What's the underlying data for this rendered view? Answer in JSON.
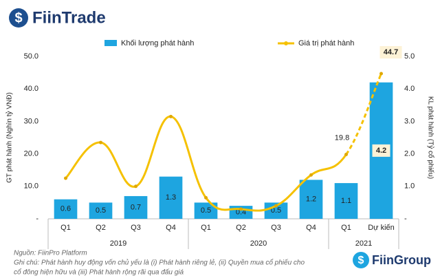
{
  "header": {
    "brand": "FiinTrade"
  },
  "chart_data": {
    "type": "bar-line",
    "categories": [
      "Q1",
      "Q2",
      "Q3",
      "Q4",
      "Q1",
      "Q2",
      "Q3",
      "Q4",
      "Q1",
      "Dự kiến"
    ],
    "x_groups": [
      "2019",
      "2020",
      "2021"
    ],
    "group_sizes": [
      4,
      4,
      2
    ],
    "y_label": "GT phát hành (Nghìn tỷ VNĐ)",
    "y2_label": "KL phát hành (Tỷ cổ phiếu)",
    "ylim": [
      0,
      50
    ],
    "yticks": [
      {
        "value": 0,
        "label": "-"
      },
      {
        "value": 10,
        "label": "10.0"
      },
      {
        "value": 20,
        "label": "20.0"
      },
      {
        "value": 30,
        "label": "30.0"
      },
      {
        "value": 40,
        "label": "40.0"
      },
      {
        "value": 50,
        "label": "50.0"
      }
    ],
    "y2lim": [
      0,
      5
    ],
    "y2ticks": [
      {
        "value": 0,
        "label": "-"
      },
      {
        "value": 1,
        "label": "1.0"
      },
      {
        "value": 2,
        "label": "2.0"
      },
      {
        "value": 3,
        "label": "3.0"
      },
      {
        "value": 4,
        "label": "4.0"
      },
      {
        "value": 5,
        "label": "5.0"
      }
    ],
    "series": [
      {
        "name": "Khối lượng phát hành",
        "type": "bar",
        "axis": "y2",
        "color": "#1ea5e0",
        "values": [
          0.6,
          0.5,
          0.7,
          1.3,
          0.5,
          0.4,
          0.5,
          1.2,
          1.1,
          4.2
        ]
      },
      {
        "name": "Giá trị phát hành",
        "type": "line",
        "axis": "y",
        "color": "#f5c100",
        "values": [
          12.5,
          23.5,
          10,
          31.5,
          6.5,
          3,
          4,
          13.5,
          19.8,
          44.7
        ]
      }
    ]
  },
  "footer": {
    "source": "Nguồn: FiinPro Platform",
    "note_1": "Ghi chú: Phát hành huy động vốn chủ yếu là  (i) Phát hành riêng lẻ, (ii) Quyền mua cổ phiếu cho",
    "note_2": "cổ đông hiện hữu và (iii) Phát hành rộng rãi qua đấu giá",
    "brand": "FiinGroup"
  }
}
